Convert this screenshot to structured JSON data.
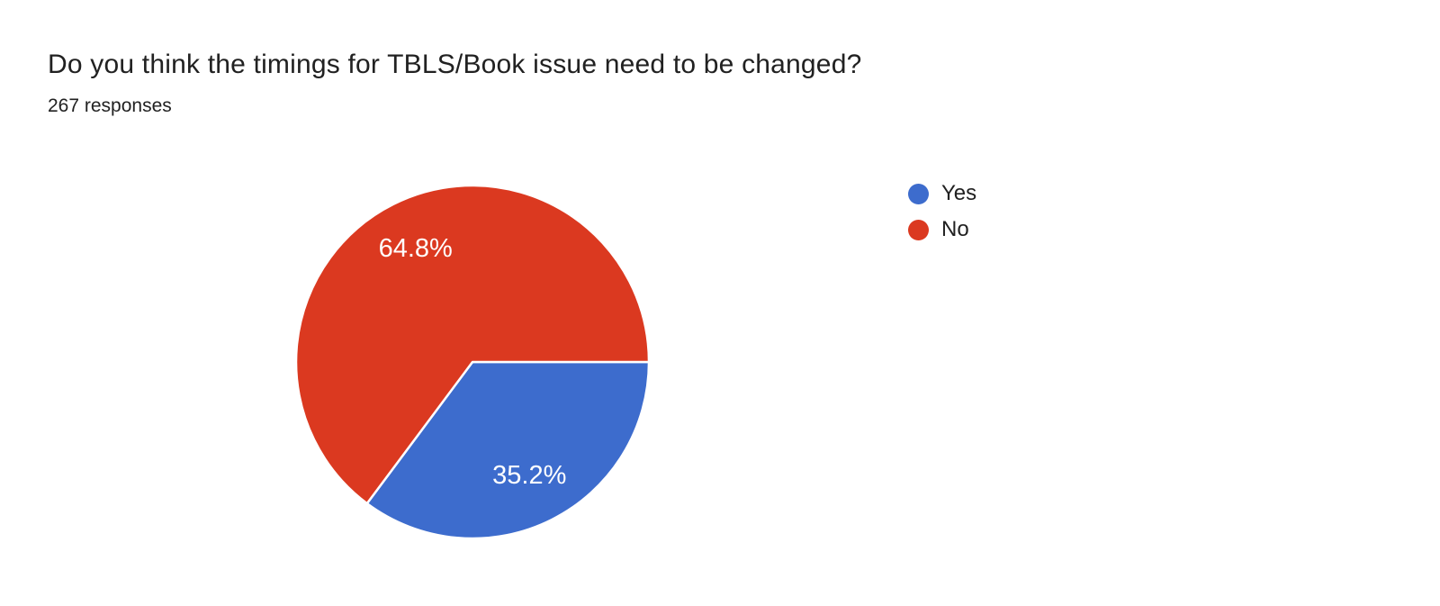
{
  "chart_data": {
    "type": "pie",
    "title": "Do you think the timings for TBLS/Book issue need to be changed?",
    "subtitle": "267 responses",
    "labels": [
      "Yes",
      "No"
    ],
    "values": [
      35.2,
      64.8
    ],
    "display_labels": [
      "35.2%",
      "64.8%"
    ],
    "colors": [
      "#3d6ccd",
      "#db3920"
    ],
    "label_color": "#ffffff",
    "start_angle_deg": 0,
    "direction": "clockwise",
    "legend_position": "right",
    "background_color": "#ffffff",
    "title_color": "#212121"
  }
}
